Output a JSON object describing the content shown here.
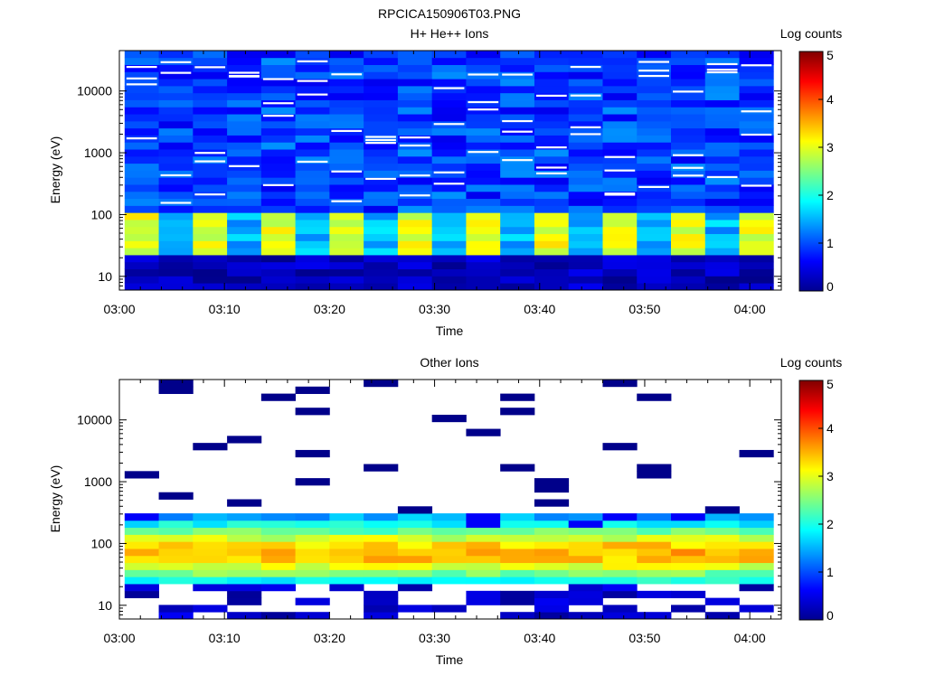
{
  "figure_title": "RPCICA150906T03.PNG",
  "chart_data": [
    {
      "type": "heatmap",
      "title": "H+ He++ Ions",
      "xlabel": "Time",
      "ylabel": "Energy (eV)",
      "x_ticks": [
        "03:00",
        "03:10",
        "03:20",
        "03:30",
        "03:40",
        "03:50",
        "04:00"
      ],
      "x_range_minutes": [
        0,
        63
      ],
      "y_scale": "log",
      "y_range": [
        6,
        45000
      ],
      "y_ticks": [
        "10",
        "100",
        "1000",
        "10000"
      ],
      "colorbar": {
        "label": "Log counts",
        "range": [
          0,
          5
        ],
        "ticks": [
          "0",
          "1",
          "2",
          "3",
          "4",
          "5"
        ]
      },
      "columns": 19,
      "column_width_minutes": 3.25,
      "bands": [
        {
          "e_min": 6,
          "e_max": 25,
          "log_counts": 0.3
        },
        {
          "e_min": 25,
          "e_max": 95,
          "log_counts": 2.7
        },
        {
          "e_min": 95,
          "e_max": 45000,
          "log_counts": 0.9
        }
      ],
      "grid": false
    },
    {
      "type": "heatmap",
      "title": "Other Ions",
      "xlabel": "Time",
      "ylabel": "Energy (eV)",
      "x_ticks": [
        "03:00",
        "03:10",
        "03:20",
        "03:30",
        "03:40",
        "03:50",
        "04:00"
      ],
      "x_range_minutes": [
        0,
        63
      ],
      "y_scale": "log",
      "y_range": [
        6,
        45000
      ],
      "y_ticks": [
        "10",
        "100",
        "1000",
        "10000"
      ],
      "colorbar": {
        "label": "Log counts",
        "range": [
          0,
          5
        ],
        "ticks": [
          "0",
          "1",
          "2",
          "3",
          "4",
          "5"
        ]
      },
      "columns": 19,
      "column_width_minutes": 3.25,
      "bands": [
        {
          "e_min": 6,
          "e_max": 25,
          "log_counts": 0.2
        },
        {
          "e_min": 25,
          "e_max": 350,
          "log_counts": 2.9
        },
        {
          "e_min": 350,
          "e_max": 45000,
          "log_counts": 0.1
        }
      ],
      "grid": false
    }
  ]
}
